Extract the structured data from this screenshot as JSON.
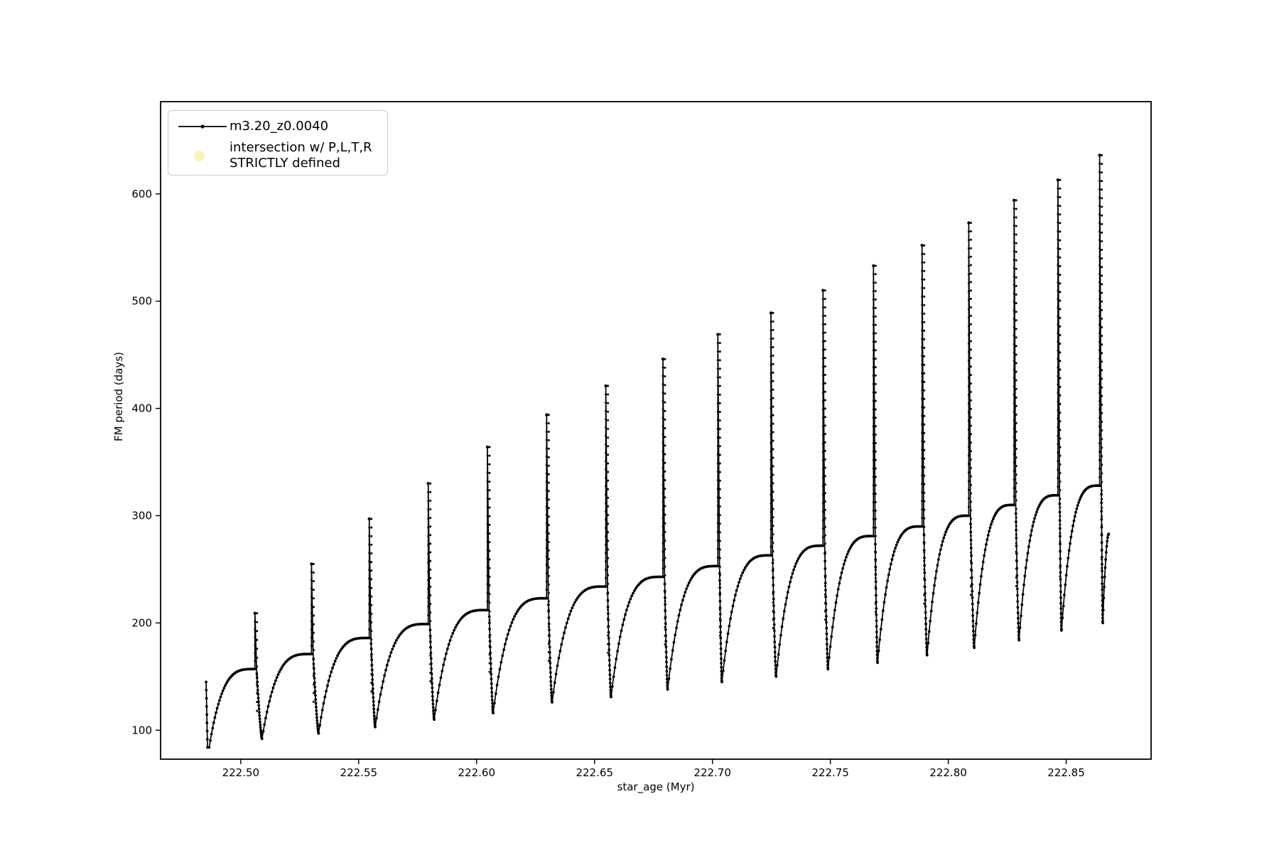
{
  "figure": {
    "background_color": "#ffffff",
    "line_color": "#000000",
    "axis_color": "#000000",
    "legend_border_color": "#cccccc",
    "intersection_marker_color": "#f8f4c0"
  },
  "chart_data": {
    "type": "line",
    "title": "",
    "xlabel": "star_age (Myr)",
    "ylabel": "FM period (days)",
    "xlim": [
      222.466,
      222.886
    ],
    "ylim": [
      73,
      686
    ],
    "xticks": [
      "222.50",
      "222.55",
      "222.60",
      "222.65",
      "222.70",
      "222.75",
      "222.80",
      "222.85"
    ],
    "xtick_values": [
      222.5,
      222.55,
      222.6,
      222.65,
      222.7,
      222.75,
      222.8,
      222.85
    ],
    "yticks": [
      "100",
      "200",
      "300",
      "400",
      "500",
      "600"
    ],
    "ytick_values": [
      100,
      200,
      300,
      400,
      500,
      600
    ],
    "grid": false,
    "legend": {
      "position": "upper left",
      "entries": [
        {
          "label": "m3.20_z0.0040",
          "marker": "black line with small point marker"
        },
        {
          "label_line1": "intersection w/ P,L,T,R",
          "label_line2": "STRICTLY defined",
          "marker": "large pale-yellow dot",
          "marker_color": "#f8f4c0"
        }
      ]
    },
    "series": [
      {
        "name": "m3.20_z0.0040",
        "style": "black solid line with dense point markers; sawtooth relaxation-oscillation pattern: each cycle rises from a minimum to a rounded plateau, fires a narrow vertical spike, then drops to the next minimum",
        "start_point": {
          "age": 222.4853,
          "period": 145
        },
        "cycles": [
          {
            "bottom_age": 222.4866,
            "bottom_period": 84,
            "spike_age": 222.506,
            "plateau_period": 157,
            "peak_period": 209
          },
          {
            "bottom_age": 222.509,
            "bottom_period": 92,
            "spike_age": 222.53,
            "plateau_period": 171,
            "peak_period": 255
          },
          {
            "bottom_age": 222.533,
            "bottom_period": 97,
            "spike_age": 222.5545,
            "plateau_period": 186,
            "peak_period": 297
          },
          {
            "bottom_age": 222.557,
            "bottom_period": 103,
            "spike_age": 222.5795,
            "plateau_period": 199,
            "peak_period": 330
          },
          {
            "bottom_age": 222.582,
            "bottom_period": 110,
            "spike_age": 222.6046,
            "plateau_period": 212,
            "peak_period": 364
          },
          {
            "bottom_age": 222.607,
            "bottom_period": 116,
            "spike_age": 222.6297,
            "plateau_period": 223,
            "peak_period": 394
          },
          {
            "bottom_age": 222.632,
            "bottom_period": 126,
            "spike_age": 222.6548,
            "plateau_period": 234,
            "peak_period": 421
          },
          {
            "bottom_age": 222.657,
            "bottom_period": 131,
            "spike_age": 222.679,
            "plateau_period": 243,
            "peak_period": 446
          },
          {
            "bottom_age": 222.681,
            "bottom_period": 138,
            "spike_age": 222.7023,
            "plateau_period": 253,
            "peak_period": 469
          },
          {
            "bottom_age": 222.704,
            "bottom_period": 145,
            "spike_age": 222.7248,
            "plateau_period": 263,
            "peak_period": 489
          },
          {
            "bottom_age": 222.727,
            "bottom_period": 150,
            "spike_age": 222.7469,
            "plateau_period": 272,
            "peak_period": 510
          },
          {
            "bottom_age": 222.749,
            "bottom_period": 157,
            "spike_age": 222.7683,
            "plateau_period": 281,
            "peak_period": 533
          },
          {
            "bottom_age": 222.77,
            "bottom_period": 163,
            "spike_age": 222.7889,
            "plateau_period": 290,
            "peak_period": 552
          },
          {
            "bottom_age": 222.791,
            "bottom_period": 170,
            "spike_age": 222.8087,
            "plateau_period": 300,
            "peak_period": 573
          },
          {
            "bottom_age": 222.811,
            "bottom_period": 177,
            "spike_age": 222.8279,
            "plateau_period": 310,
            "peak_period": 594
          },
          {
            "bottom_age": 222.83,
            "bottom_period": 184,
            "spike_age": 222.8465,
            "plateau_period": 319,
            "peak_period": 613
          },
          {
            "bottom_age": 222.848,
            "bottom_period": 193,
            "spike_age": 222.8642,
            "plateau_period": 328,
            "peak_period": 636
          }
        ],
        "final_bottom": {
          "age": 222.8655,
          "period": 200
        },
        "tail_end": {
          "age": 222.868,
          "period": 283
        }
      }
    ]
  }
}
